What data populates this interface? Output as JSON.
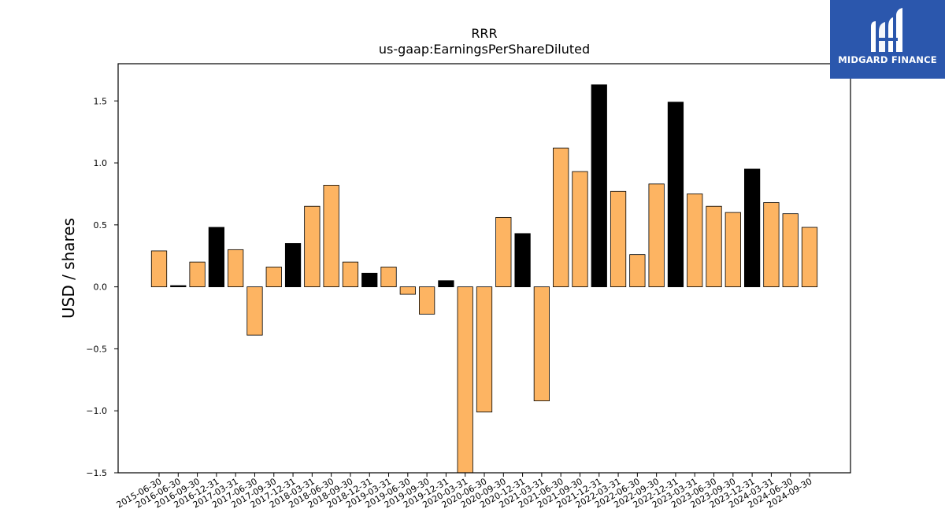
{
  "brand": {
    "name": "MIDGARD FINANCE",
    "bg_color": "#2b57ad",
    "text_color": "#ffffff",
    "icon": "midgard-logo-icon"
  },
  "chart_data": {
    "type": "bar",
    "title": "RRR",
    "subtitle": "us-gaap:EarningsPerShareDiluted",
    "ylabel": "USD / shares",
    "xlabel": "",
    "ylim": [
      -1.5,
      1.8
    ],
    "yticks": [
      -1.5,
      -1.0,
      -0.5,
      0.0,
      0.5,
      1.0,
      1.5
    ],
    "ytick_labels": [
      "−1.5",
      "−1.0",
      "−0.5",
      "0.0",
      "0.5",
      "1.0",
      "1.5"
    ],
    "grid": false,
    "colors": {
      "quarter": "#fdb462",
      "annual": "#000000",
      "edge": "#000000"
    },
    "categories": [
      "2015-06-30",
      "2016-06-30",
      "2016-09-30",
      "2016-12-31",
      "2017-03-31",
      "2017-06-30",
      "2017-09-30",
      "2017-12-31",
      "2018-03-31",
      "2018-06-30",
      "2018-09-30",
      "2018-12-31",
      "2019-03-31",
      "2019-06-30",
      "2019-09-30",
      "2019-12-31",
      "2020-03-31",
      "2020-06-30",
      "2020-09-30",
      "2020-12-31",
      "2021-03-31",
      "2021-06-30",
      "2021-09-30",
      "2021-12-31",
      "2022-03-31",
      "2022-06-30",
      "2022-09-30",
      "2022-12-31",
      "2023-03-31",
      "2023-06-30",
      "2023-09-30",
      "2023-12-31",
      "2024-03-31",
      "2024-06-30",
      "2024-09-30"
    ],
    "values": [
      0.29,
      0.01,
      0.2,
      0.48,
      0.3,
      -0.39,
      0.16,
      0.35,
      0.65,
      0.82,
      0.2,
      0.11,
      0.16,
      -0.06,
      -0.22,
      0.05,
      -1.65,
      -1.01,
      0.56,
      0.43,
      -0.92,
      1.12,
      0.93,
      1.63,
      0.77,
      0.26,
      0.83,
      1.49,
      0.75,
      0.65,
      0.6,
      0.95,
      0.68,
      0.59,
      0.48
    ],
    "highlight": [
      false,
      true,
      false,
      true,
      false,
      false,
      false,
      true,
      false,
      false,
      false,
      true,
      false,
      false,
      false,
      true,
      false,
      false,
      false,
      true,
      false,
      false,
      false,
      true,
      false,
      false,
      false,
      true,
      false,
      false,
      false,
      true,
      false,
      false,
      false
    ]
  }
}
